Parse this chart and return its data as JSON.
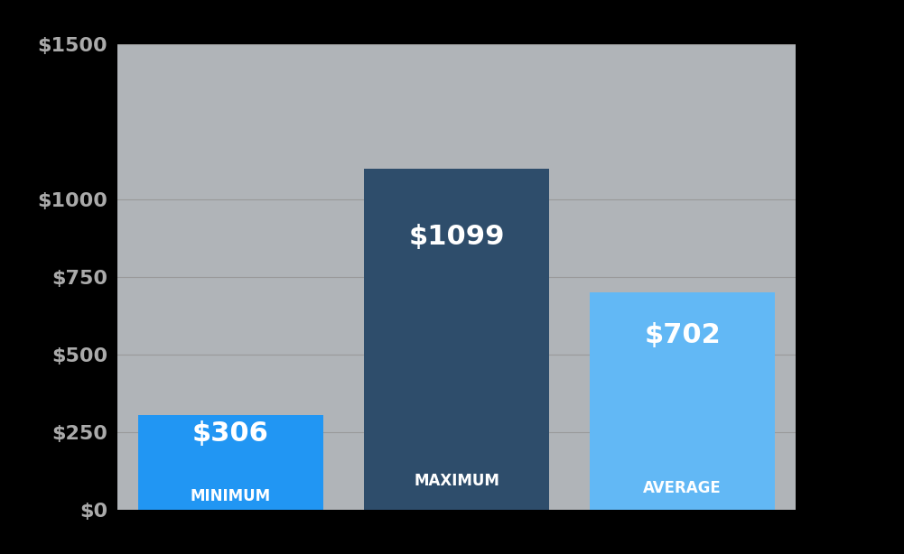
{
  "categories": [
    "MINIMUM",
    "MAXIMUM",
    "AVERAGE"
  ],
  "values": [
    306,
    1099,
    702
  ],
  "bar_colors": [
    "#2196F3",
    "#2E4D6B",
    "#62B8F5"
  ],
  "background_color": "#000000",
  "plot_bg_color": "#B0B4B8",
  "value_labels": [
    "$306",
    "$1099",
    "$702"
  ],
  "yticks": [
    0,
    250,
    500,
    750,
    1000,
    1500
  ],
  "yticklabels": [
    "$0",
    "$250",
    "$500",
    "$750",
    "$1000",
    "$1500"
  ],
  "ylim": [
    0,
    1500
  ],
  "value_fontsize": 22,
  "tick_fontsize": 16,
  "category_fontsize": 12,
  "text_color": "#ffffff",
  "tick_color": "#aaaaaa",
  "grid_color": "#999999"
}
